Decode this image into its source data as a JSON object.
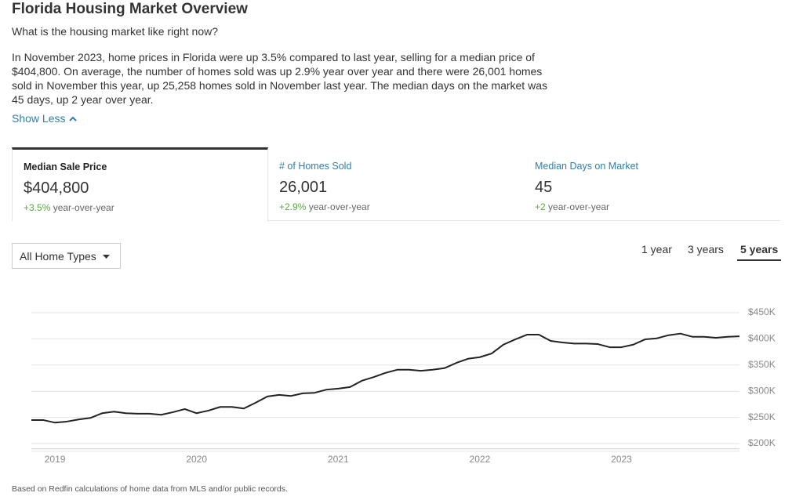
{
  "header": {
    "title": "Florida Housing Market Overview",
    "subtitle": "What is the housing market like right now?"
  },
  "summary": "In November 2023, home prices in Florida were up 3.5% compared to last year, selling for a median price of $404,800. On average, the number of homes sold was up 2.9% year over year and there were 26,001 homes sold in November this year, up 25,258 homes sold in November last year. The median days on the market was 45 days, up 2 year over year.",
  "show_less": "Show Less",
  "tabs": [
    {
      "label": "Median Sale Price",
      "value": "$404,800",
      "change": "+3.5%",
      "change_suffix": "year-over-year"
    },
    {
      "label": "# of Homes Sold",
      "value": "26,001",
      "change": "+2.9%",
      "change_suffix": "year-over-year"
    },
    {
      "label": "Median Days on Market",
      "value": "45",
      "change": "+2",
      "change_suffix": "year-over-year"
    }
  ],
  "active_tab": 0,
  "filter": "All Home Types",
  "ranges": [
    "1 year",
    "3 years",
    "5 years"
  ],
  "selected_range": 2,
  "chart_data": {
    "type": "line",
    "categories": [
      null,
      null,
      "2019",
      null,
      null,
      null,
      null,
      null,
      null,
      null,
      null,
      null,
      null,
      null,
      "2020",
      null,
      null,
      null,
      null,
      null,
      null,
      null,
      null,
      null,
      null,
      null,
      "2021",
      null,
      null,
      null,
      null,
      null,
      null,
      null,
      null,
      null,
      null,
      null,
      "2022",
      null,
      null,
      null,
      null,
      null,
      null,
      null,
      null,
      null,
      null,
      null,
      "2023",
      null,
      null,
      null,
      null,
      null,
      null,
      null,
      null,
      null,
      null
    ],
    "series": [
      {
        "name": "Median Sale Price",
        "color": "#222222",
        "values": [
          245000,
          245000,
          240000,
          242000,
          246000,
          249000,
          258000,
          261000,
          258000,
          257000,
          257000,
          255000,
          260000,
          266000,
          258000,
          263000,
          270000,
          270000,
          267000,
          278000,
          290000,
          293000,
          291000,
          296000,
          297000,
          303000,
          305000,
          308000,
          320000,
          327000,
          335000,
          341000,
          341000,
          339000,
          341000,
          344000,
          354000,
          362000,
          365000,
          372000,
          389000,
          399000,
          408000,
          408000,
          396000,
          393000,
          391000,
          391000,
          390000,
          384000,
          384000,
          389000,
          399000,
          401000,
          407000,
          410000,
          404000,
          404000,
          402000,
          404000,
          404800
        ]
      }
    ],
    "ylim": [
      190000,
      470000
    ],
    "yticks": [
      {
        "value": 200000,
        "label": "$200K"
      },
      {
        "value": 250000,
        "label": "$250K"
      },
      {
        "value": 300000,
        "label": "$300K"
      },
      {
        "value": 350000,
        "label": "$350K"
      },
      {
        "value": 400000,
        "label": "$400K"
      },
      {
        "value": 450000,
        "label": "$450K"
      }
    ],
    "grid": true
  },
  "footnote": "Based on Redfin calculations of home data from MLS and/or public records."
}
